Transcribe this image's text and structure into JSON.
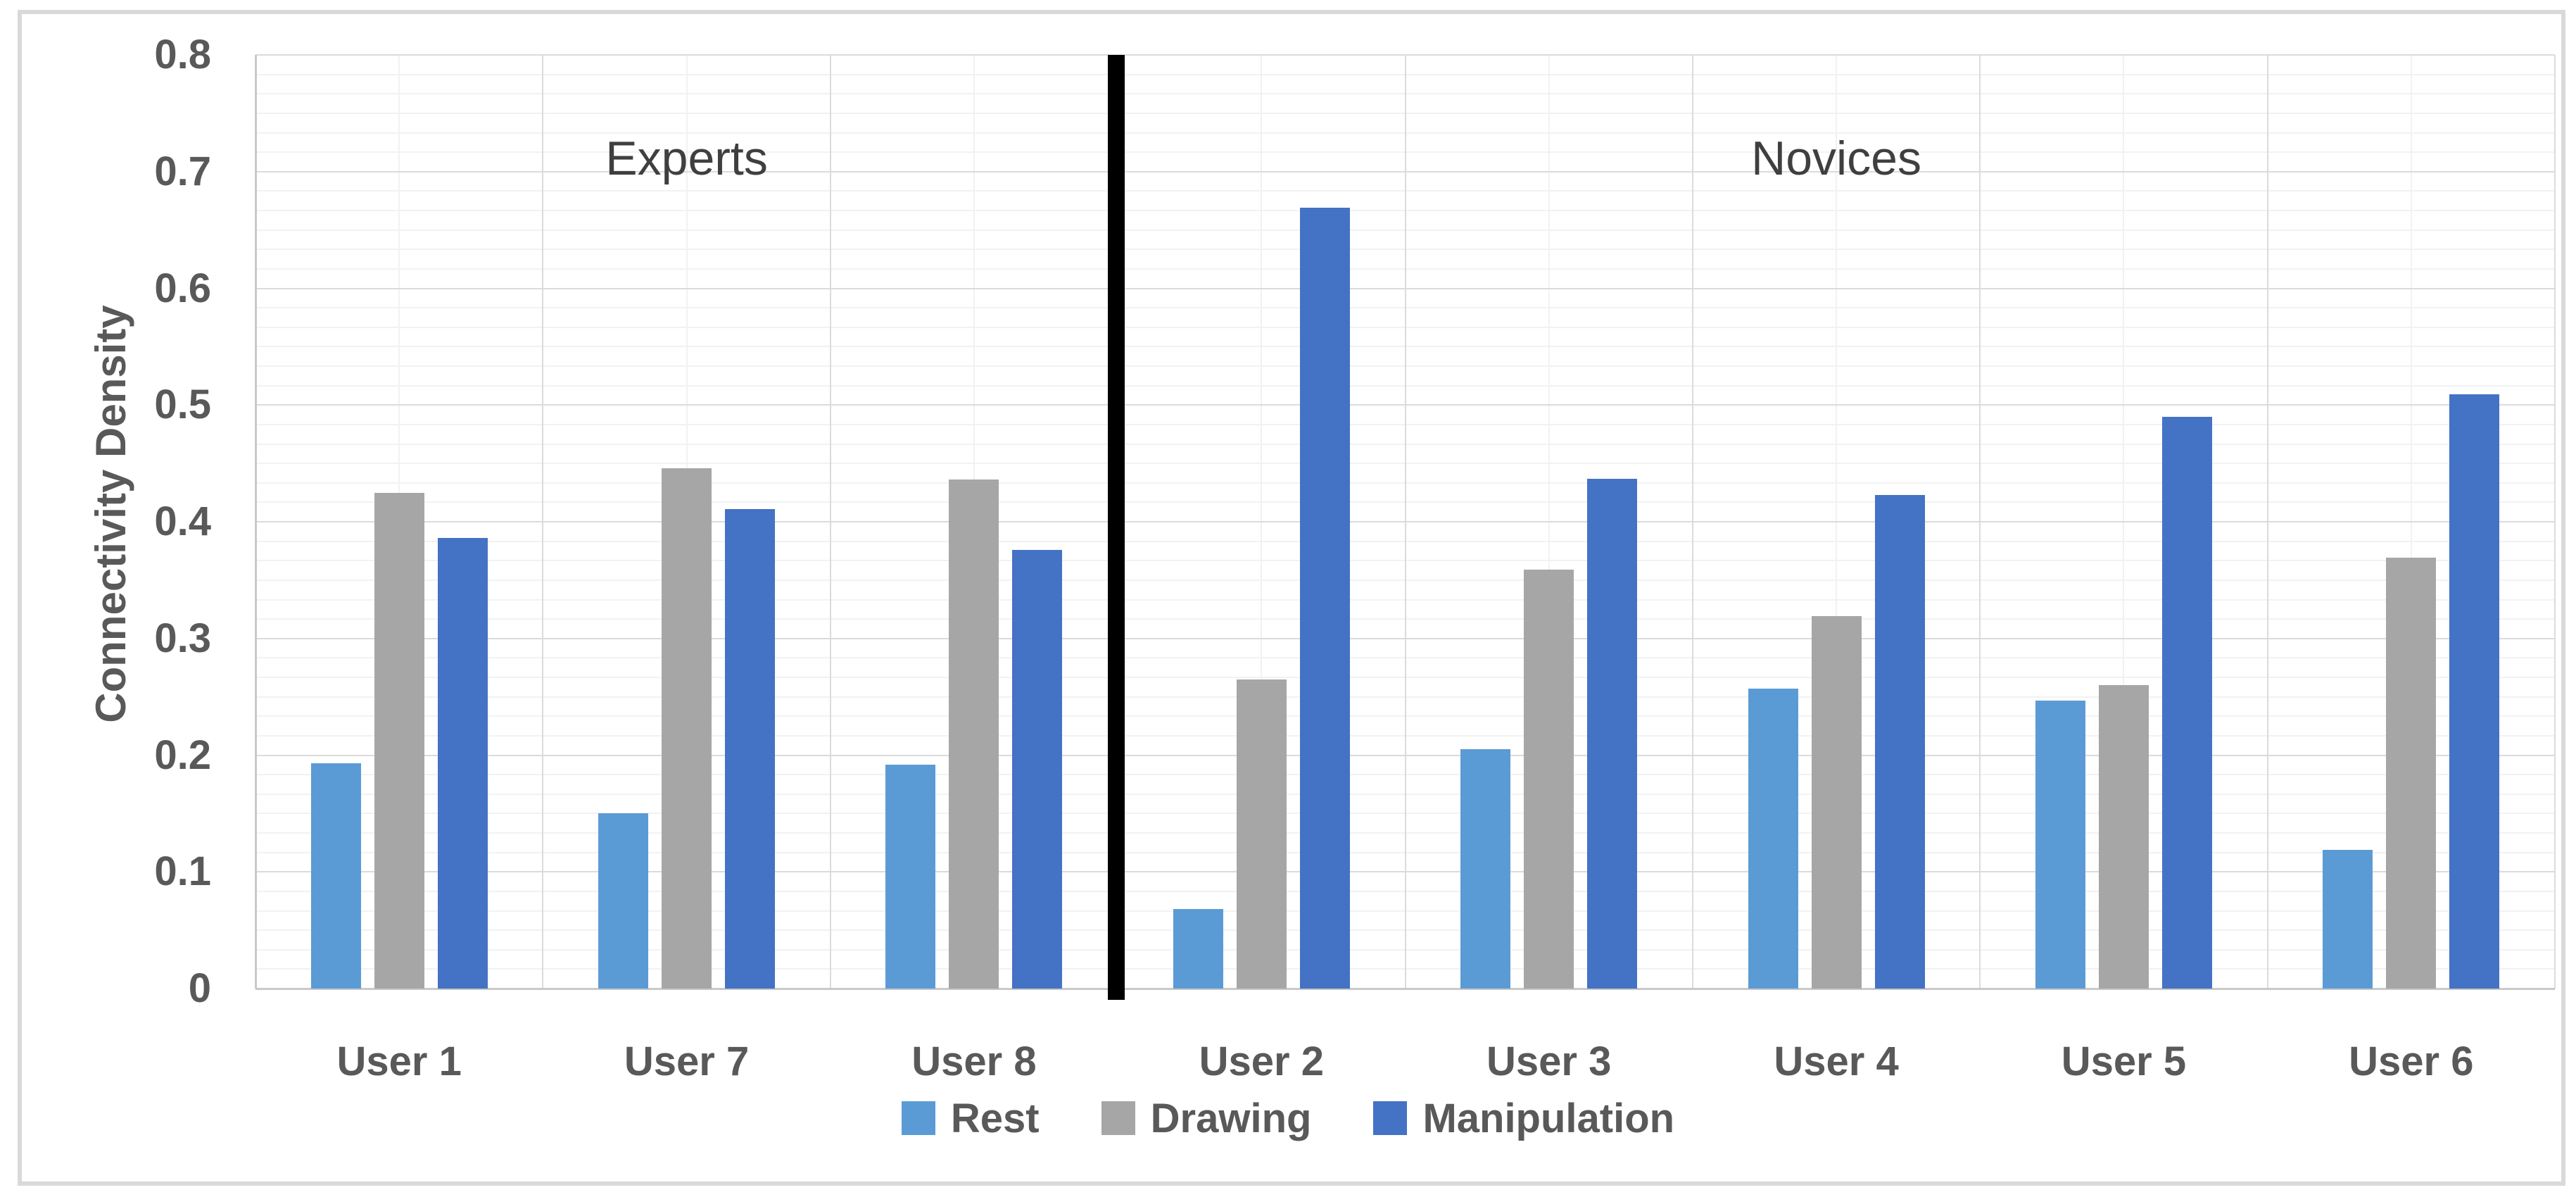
{
  "chart_data": {
    "type": "bar",
    "title": "",
    "categories": [
      "User 1",
      "User 7",
      "User 8",
      "User 2",
      "User 3",
      "User 4",
      "User 5",
      "User 6"
    ],
    "series": [
      {
        "name": "Rest",
        "color": "#5B9BD5",
        "values": [
          0.193,
          0.15,
          0.192,
          0.068,
          0.205,
          0.257,
          0.247,
          0.119
        ]
      },
      {
        "name": "Drawing",
        "color": "#A6A6A6",
        "values": [
          0.425,
          0.446,
          0.436,
          0.265,
          0.359,
          0.319,
          0.26,
          0.369
        ]
      },
      {
        "name": "Manipulation",
        "color": "#4472C4",
        "values": [
          0.386,
          0.411,
          0.376,
          0.669,
          0.437,
          0.423,
          0.49,
          0.509
        ]
      }
    ],
    "xlabel": "",
    "ylabel": "Connectivity Density",
    "ylim": [
      0,
      0.8
    ],
    "ytick_labels": [
      "0",
      "0.1",
      "0.2",
      "0.3",
      "0.4",
      "0.5",
      "0.6",
      "0.7",
      "0.8"
    ],
    "grid": "major and minor horizontal + vertical, light gray",
    "legend_position": "bottom-center",
    "annotations": {
      "group_labels": [
        {
          "text": "Experts",
          "first_category": "User 1",
          "last_category": "User 8"
        },
        {
          "text": "Novices",
          "first_category": "User 2",
          "last_category": "User 6"
        }
      ],
      "divider_after_category": "User 8"
    },
    "colors": {
      "rest": "#5B9BD5",
      "drawing": "#A6A6A6",
      "manipulation": "#4472C4",
      "grid_major": "#DBDBDB",
      "grid_minor": "#F2F2F2",
      "axis_line": "#C9C9C9",
      "tick_text": "#595959",
      "group_label_text": "#3F3F3F",
      "divider": "#000000",
      "figure_border": "#D9D9D9"
    }
  }
}
